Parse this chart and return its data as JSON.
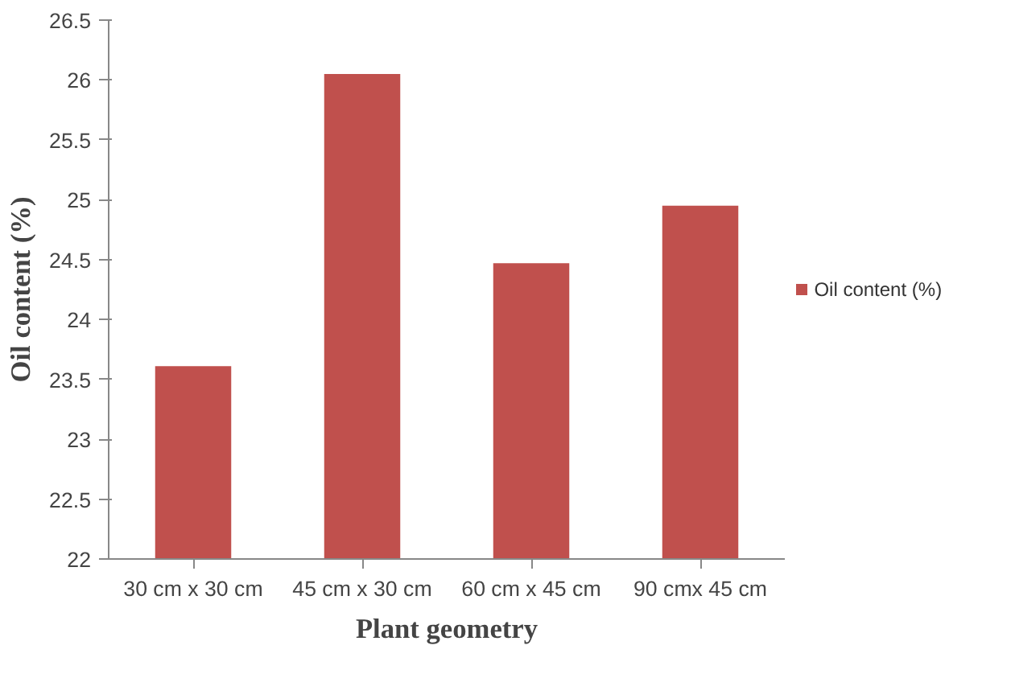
{
  "chart_data": {
    "type": "bar",
    "xlabel": "Plant geometry",
    "ylabel": "Oil content (%)",
    "categories": [
      "30 cm x 30 cm",
      "45 cm x 30 cm",
      "60 cm x 45 cm",
      "90 cmx 45 cm"
    ],
    "series": [
      {
        "name": "Oil content (%)",
        "color": "#c0504d",
        "values": [
          23.61,
          26.05,
          24.47,
          24.95
        ]
      }
    ],
    "ylim": [
      22,
      26.5
    ],
    "yticks": [
      22,
      22.5,
      23,
      23.5,
      24,
      24.5,
      25,
      25.5,
      26,
      26.5
    ],
    "grid": false,
    "legend": "right"
  }
}
